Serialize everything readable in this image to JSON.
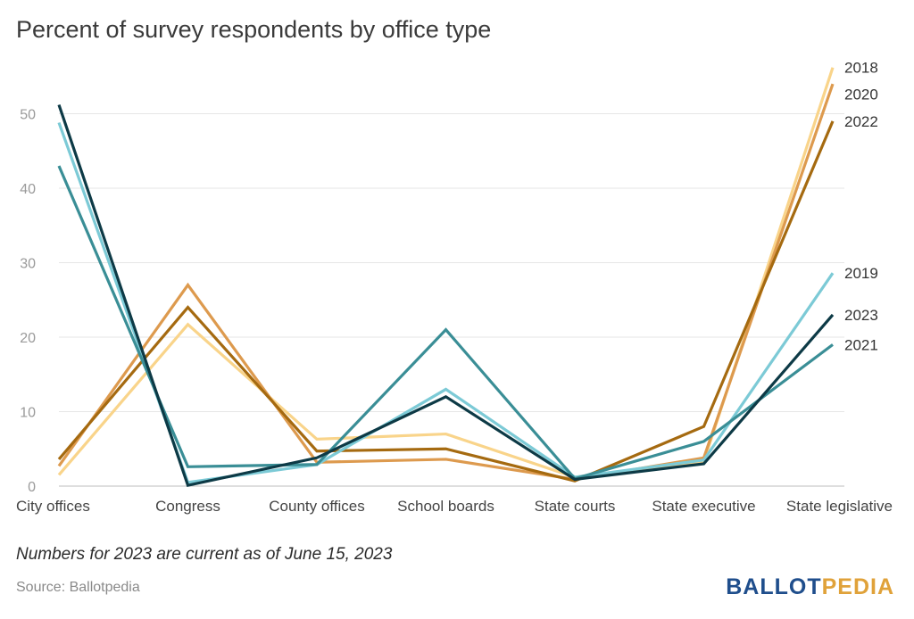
{
  "page": {
    "note": "Numbers for 2023 are current as of June 15, 2023",
    "source": "Source: Ballotpedia",
    "logo_part1": "BALLOT",
    "logo_part2": "PEDIA"
  },
  "chart_data": {
    "type": "line",
    "title": "Percent of survey respondents by office type",
    "xlabel": "",
    "ylabel": "",
    "ylim": [
      0,
      57
    ],
    "yticks": [
      0,
      10,
      20,
      30,
      40,
      50
    ],
    "grid": true,
    "categories": [
      "City offices",
      "Congress",
      "County offices",
      "School boards",
      "State courts",
      "State executive",
      "State legislative"
    ],
    "series": [
      {
        "name": "2018",
        "color": "#f9d48a",
        "values": [
          1.5,
          21.7,
          6.3,
          7.0,
          1.2,
          3.3,
          56.2
        ]
      },
      {
        "name": "2020",
        "color": "#dd9a4e",
        "values": [
          2.7,
          27.0,
          3.2,
          3.6,
          0.9,
          3.8,
          54.0
        ]
      },
      {
        "name": "2022",
        "color": "#a56a10",
        "values": [
          3.6,
          24.0,
          4.7,
          5.0,
          0.7,
          8.0,
          49.0
        ]
      },
      {
        "name": "2019",
        "color": "#7ccad6",
        "values": [
          48.8,
          0.5,
          2.9,
          13.0,
          1.2,
          3.5,
          28.6
        ]
      },
      {
        "name": "2023",
        "color": "#0d3a46",
        "values": [
          51.2,
          0.1,
          3.8,
          12.0,
          0.9,
          3.0,
          23.0
        ]
      },
      {
        "name": "2021",
        "color": "#3a8e96",
        "values": [
          43.0,
          2.6,
          2.9,
          21.0,
          1.0,
          6.0,
          19.0
        ]
      }
    ],
    "label_order_top_to_bottom": [
      "2018",
      "2020",
      "2022",
      "2019",
      "2023",
      "2021"
    ]
  }
}
